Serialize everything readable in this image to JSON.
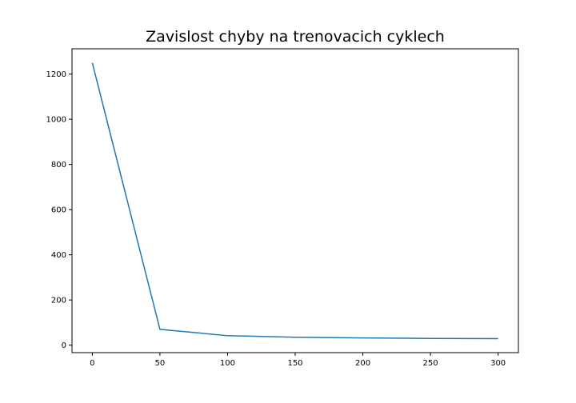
{
  "chart_data": {
    "type": "line",
    "title": "Zavislost chyby na trenovacich cyklech",
    "xlabel": "",
    "ylabel": "",
    "x": [
      0,
      50,
      100,
      150,
      200,
      250,
      300
    ],
    "series": [
      {
        "values": [
          1250,
          70,
          42,
          35,
          32,
          30,
          29
        ],
        "color": "#1f77b4"
      }
    ],
    "xlim": [
      -15,
      315
    ],
    "ylim": [
      -33,
      1312
    ],
    "xticks": [
      0,
      50,
      100,
      150,
      200,
      250,
      300
    ],
    "yticks": [
      0,
      200,
      400,
      600,
      800,
      1000,
      1200
    ],
    "grid": false,
    "legend": "none"
  }
}
